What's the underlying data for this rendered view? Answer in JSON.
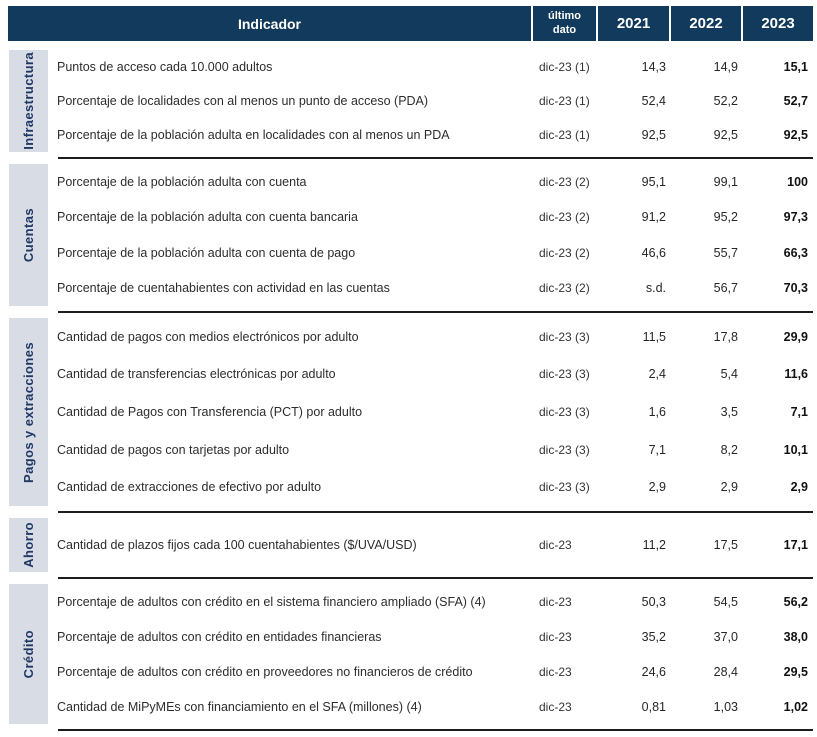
{
  "colors": {
    "header_bg": "#123A5C",
    "header_text": "#FFFFFF",
    "group_strip_bg": "#D7DCE5",
    "group_label_text": "#1F3864",
    "row_text": "#2D2D2D",
    "value_2023_bold_text": "#111111",
    "separator_line": "#1C1C1C",
    "page_bg": "#FFFFFF"
  },
  "header": {
    "indicator_label": "Indicador",
    "last_data_label": "último dato",
    "year_labels": [
      "2021",
      "2022",
      "2023"
    ]
  },
  "groups": [
    {
      "label": "Infraestructura",
      "rows": [
        {
          "indicator": "Puntos de acceso cada 10.000 adultos",
          "ultimo_dato": "dic-23 (1)",
          "values": [
            "14,3",
            "14,9",
            "15,1"
          ]
        },
        {
          "indicator": "Porcentaje de localidades con al menos un punto de acceso (PDA)",
          "ultimo_dato": "dic-23 (1)",
          "values": [
            "52,4",
            "52,2",
            "52,7"
          ]
        },
        {
          "indicator": "Porcentaje de la población adulta en localidades con al menos un PDA",
          "ultimo_dato": "dic-23 (1)",
          "values": [
            "92,5",
            "92,5",
            "92,5"
          ]
        }
      ]
    },
    {
      "label": "Cuentas",
      "rows": [
        {
          "indicator": "Porcentaje de la población adulta con cuenta",
          "ultimo_dato": "dic-23 (2)",
          "values": [
            "95,1",
            "99,1",
            "100"
          ]
        },
        {
          "indicator": "Porcentaje de la población adulta con cuenta bancaria",
          "ultimo_dato": "dic-23 (2)",
          "values": [
            "91,2",
            "95,2",
            "97,3"
          ]
        },
        {
          "indicator": "Porcentaje de la población adulta con cuenta de pago",
          "ultimo_dato": "dic-23 (2)",
          "values": [
            "46,6",
            "55,7",
            "66,3"
          ]
        },
        {
          "indicator": "Porcentaje de cuentahabientes con actividad en las cuentas",
          "ultimo_dato": "dic-23 (2)",
          "values": [
            "s.d.",
            "56,7",
            "70,3"
          ]
        }
      ]
    },
    {
      "label": "Pagos y extracciones",
      "rows": [
        {
          "indicator": "Cantidad de pagos con medios electrónicos por adulto",
          "ultimo_dato": "dic-23 (3)",
          "values": [
            "11,5",
            "17,8",
            "29,9"
          ]
        },
        {
          "indicator": "Cantidad de transferencias electrónicas por adulto",
          "ultimo_dato": "dic-23 (3)",
          "values": [
            "2,4",
            "5,4",
            "11,6"
          ]
        },
        {
          "indicator": "Cantidad de Pagos con Transferencia (PCT) por adulto",
          "ultimo_dato": "dic-23 (3)",
          "values": [
            "1,6",
            "3,5",
            "7,1"
          ]
        },
        {
          "indicator": "Cantidad de pagos con tarjetas por adulto",
          "ultimo_dato": "dic-23 (3)",
          "values": [
            "7,1",
            "8,2",
            "10,1"
          ]
        },
        {
          "indicator": "Cantidad de extracciones de efectivo por adulto",
          "ultimo_dato": "dic-23 (3)",
          "values": [
            "2,9",
            "2,9",
            "2,9"
          ]
        }
      ]
    },
    {
      "label": "Ahorro",
      "rows": [
        {
          "indicator": "Cantidad de plazos fijos cada 100 cuentahabientes ($/UVA/USD)",
          "ultimo_dato": "dic-23",
          "values": [
            "11,2",
            "17,5",
            "17,1"
          ]
        }
      ]
    },
    {
      "label": "Crédito",
      "rows": [
        {
          "indicator": "Porcentaje de adultos con crédito en el sistema financiero ampliado (SFA) (4)",
          "ultimo_dato": "dic-23",
          "values": [
            "50,3",
            "54,5",
            "56,2"
          ]
        },
        {
          "indicator": "Porcentaje de adultos con crédito en entidades financieras",
          "ultimo_dato": "dic-23",
          "values": [
            "35,2",
            "37,0",
            "38,0"
          ]
        },
        {
          "indicator": "Porcentaje de adultos con crédito en proveedores no financieros de crédito",
          "ultimo_dato": "dic-23",
          "values": [
            "24,6",
            "28,4",
            "29,5"
          ]
        },
        {
          "indicator": "Cantidad de MiPyMEs con financiamiento en el SFA (millones) (4)",
          "ultimo_dato": "dic-23",
          "values": [
            "0,81",
            "1,03",
            "1,02"
          ]
        }
      ]
    }
  ]
}
